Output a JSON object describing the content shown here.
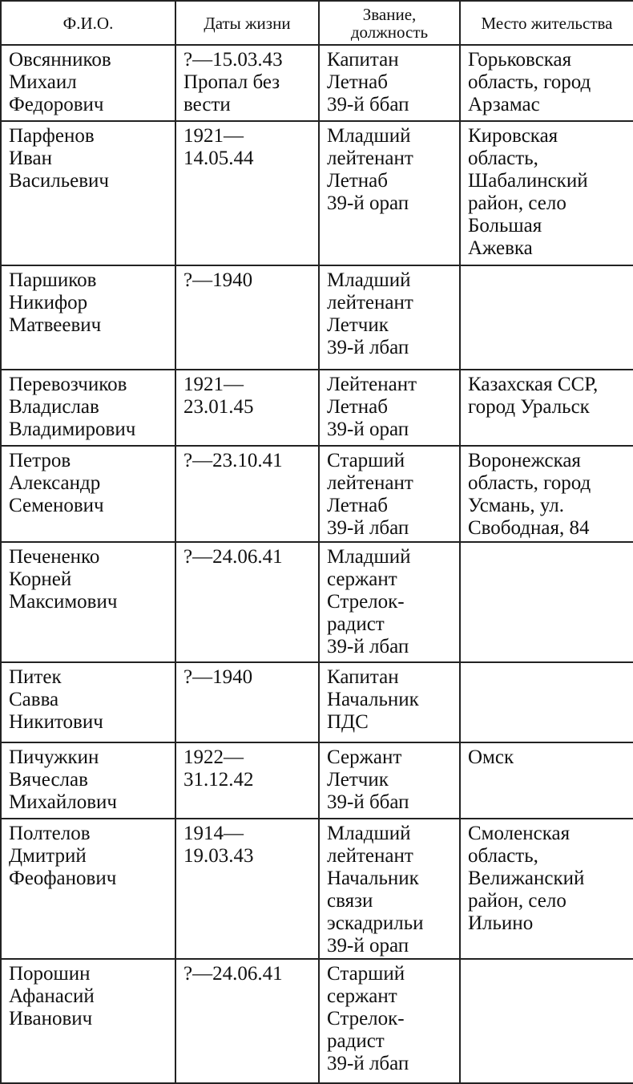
{
  "headers": [
    "Ф.И.О.",
    "Даты жизни",
    "Звание, должность",
    "Место жительства"
  ],
  "rows": [
    {
      "name": [
        "Овсянников",
        "Михаил",
        "Федорович"
      ],
      "dates": [
        "?—15.03.43",
        "Пропал без",
        "вести"
      ],
      "rank": [
        "Капитан",
        "Летнаб",
        "39-й ббап"
      ],
      "place": [
        "Горьковская",
        "область, город",
        "Арзамас"
      ]
    },
    {
      "name": [
        "Парфенов",
        "Иван",
        "Васильевич"
      ],
      "dates": [
        "1921—",
        "14.05.44"
      ],
      "rank": [
        "Младший",
        "лейтенант",
        "Летнаб",
        "39-й орап"
      ],
      "place": [
        "Кировская",
        "область,",
        "Шабалинский",
        "район, село",
        "Большая",
        "Ажевка"
      ]
    },
    {
      "name": [
        "Паршиков",
        "Никифор",
        "Матвеевич"
      ],
      "dates": [
        "?—1940"
      ],
      "rank": [
        "Младший",
        "лейтенант",
        "Летчик",
        "39-й лбап"
      ],
      "place": []
    },
    {
      "name": [
        "Перевозчиков",
        "Владислав",
        "Владимирович"
      ],
      "dates": [
        "1921—",
        "23.01.45"
      ],
      "rank": [
        "Лейтенант",
        "Летнаб",
        "39-й орап"
      ],
      "place": [
        "Казахская ССР,",
        "город Уральск"
      ]
    },
    {
      "name": [
        "Петров",
        "Александр",
        "Семенович"
      ],
      "dates": [
        "?—23.10.41"
      ],
      "rank": [
        "Старший",
        "лейтенант",
        "Летнаб",
        "39-й лбап"
      ],
      "place": [
        "Воронежская",
        "область, город",
        "Усмань, ул.",
        "Свободная, 84"
      ]
    },
    {
      "name": [
        "Печененко",
        "Корней",
        "Максимович"
      ],
      "dates": [
        "?—24.06.41"
      ],
      "rank": [
        "Младший",
        "сержант",
        "Стрелок-",
        "радист",
        "39-й лбап"
      ],
      "place": []
    },
    {
      "name": [
        "Питек",
        "Савва",
        "Никитович"
      ],
      "dates": [
        "?—1940"
      ],
      "rank": [
        "Капитан",
        "Начальник",
        "ПДС"
      ],
      "place": []
    },
    {
      "name": [
        "Пичужкин",
        "Вячеслав",
        "Михайлович"
      ],
      "dates": [
        "1922—",
        "31.12.42"
      ],
      "rank": [
        "Сержант",
        "Летчик",
        "39-й ббап"
      ],
      "place": [
        "Омск"
      ]
    },
    {
      "name": [
        "Полтелов",
        "Дмитрий",
        "Феофанович"
      ],
      "dates": [
        "1914—",
        "19.03.43"
      ],
      "rank": [
        "Младший",
        "лейтенант",
        "Начальник",
        "связи",
        "эскадрильи",
        "39-й орап"
      ],
      "place": [
        "Смоленская",
        "область,",
        "Велижанский",
        "район, село",
        "Ильино"
      ]
    },
    {
      "name": [
        "Порошин",
        "Афанасий",
        "Иванович"
      ],
      "dates": [
        "?—24.06.41"
      ],
      "rank": [
        "Старший",
        "сержант",
        "Стрелок-",
        "радист",
        "39-й лбап"
      ],
      "place": []
    }
  ]
}
